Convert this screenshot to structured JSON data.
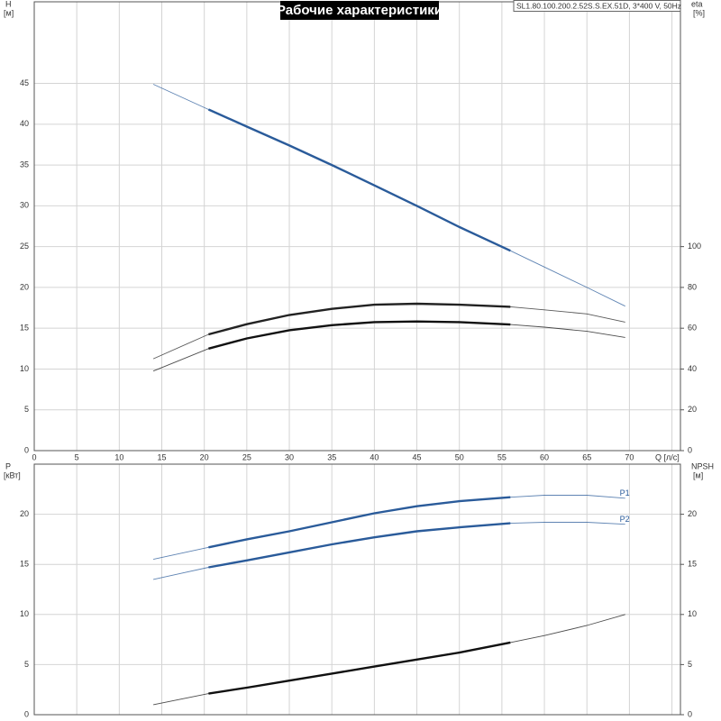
{
  "chart_data": [
    {
      "type": "line",
      "title": "Рабочие характеристики",
      "subtitle": "SL1.80.100.200.2.52S.S.EX.51D, 3*400 V, 50Hz",
      "x_label": "Q [л/с]",
      "y_label": "H",
      "y_unit": "[м]",
      "y2_label": "eta",
      "y2_unit": "[%]",
      "x": [
        14,
        20.5,
        25,
        30,
        35,
        40,
        45,
        50,
        56,
        60,
        65,
        69.5
      ],
      "xlim": [
        0,
        76
      ],
      "xticks": [
        0,
        5,
        10,
        15,
        20,
        25,
        30,
        35,
        40,
        45,
        50,
        55,
        60,
        65,
        70,
        75
      ],
      "ylim": [
        0,
        55
      ],
      "yticks": [
        0,
        5,
        10,
        15,
        20,
        25,
        30,
        35,
        40,
        45
      ],
      "y2lim": [
        0,
        220
      ],
      "y2ticks": [
        0,
        20,
        40,
        60,
        80,
        100
      ],
      "grid": true,
      "show_xtick_labels": true,
      "duty_range": [
        20.5,
        56
      ],
      "series": [
        {
          "color": "#2a5b9a",
          "values": [
            44.9,
            41.8,
            39.7,
            37.4,
            35.0,
            32.5,
            30.0,
            27.4,
            24.5,
            22.5,
            20.0,
            17.7
          ]
        },
        {
          "color": "#222222",
          "axis": "y2",
          "values": [
            45,
            57,
            62,
            66.5,
            69.5,
            71.5,
            72,
            71.5,
            70.5,
            69,
            67,
            63
          ]
        },
        {
          "color": "#111111",
          "axis": "y2",
          "values": [
            39,
            50,
            55,
            59,
            61.5,
            63,
            63.3,
            63,
            61.8,
            60.5,
            58.5,
            55.5
          ]
        }
      ]
    },
    {
      "type": "line",
      "y_label": "P",
      "y_unit": "[кВт]",
      "y2_label": "NPSH",
      "y2_unit": "[м]",
      "x": [
        14,
        20.5,
        25,
        30,
        35,
        40,
        45,
        50,
        56,
        60,
        65,
        69.5
      ],
      "xlim": [
        0,
        76
      ],
      "xticks": [
        0,
        5,
        10,
        15,
        20,
        25,
        30,
        35,
        40,
        45,
        50,
        55,
        60,
        65,
        70,
        75
      ],
      "ylim": [
        0,
        25
      ],
      "yticks": [
        0,
        5,
        10,
        15,
        20
      ],
      "y2lim": [
        0,
        25
      ],
      "y2ticks": [
        0,
        5,
        10,
        15,
        20
      ],
      "grid": true,
      "show_xtick_labels": false,
      "duty_range": [
        20.5,
        56
      ],
      "series": [
        {
          "name": "P1",
          "color": "#2a5b9a",
          "values": [
            15.5,
            16.7,
            17.5,
            18.3,
            19.2,
            20.1,
            20.8,
            21.3,
            21.7,
            21.9,
            21.9,
            21.6
          ]
        },
        {
          "name": "P2",
          "color": "#2a5b9a",
          "values": [
            13.5,
            14.7,
            15.4,
            16.2,
            17.0,
            17.7,
            18.3,
            18.7,
            19.1,
            19.2,
            19.2,
            19.0
          ]
        },
        {
          "color": "#111111",
          "axis": "y2",
          "values": [
            1.0,
            2.1,
            2.7,
            3.4,
            4.1,
            4.8,
            5.5,
            6.2,
            7.2,
            7.9,
            8.9,
            10.0
          ]
        }
      ]
    }
  ]
}
